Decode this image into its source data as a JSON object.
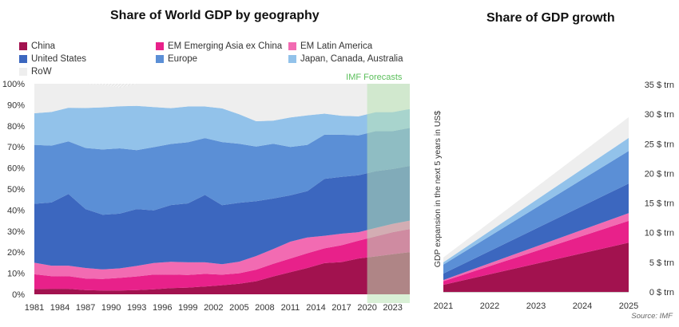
{
  "titles": {
    "left": "Share of World GDP by geography",
    "right": "Share of GDP growth"
  },
  "source": "Source: IMF",
  "colors": {
    "China": "#a2124f",
    "EM Emerging Asia ex China": "#e8218a",
    "EM Latin America": "#f26bb2",
    "United States": "#3c67bf",
    "Europe": "#5b8fd6",
    "Japan, Canada, Australia": "#92c2ea",
    "RoW": "#eeeeee",
    "forecast": "#b9e4b5"
  },
  "chart_data": [
    {
      "type": "area",
      "title": "Share of World GDP by geography",
      "stacked": true,
      "x": [
        1981,
        1983,
        1985,
        1987,
        1989,
        1991,
        1993,
        1995,
        1997,
        1999,
        2001,
        2003,
        2005,
        2007,
        2009,
        2011,
        2013,
        2015,
        2017,
        2019,
        2021,
        2023,
        2025
      ],
      "xticks": [
        "1981",
        "1984",
        "1987",
        "1990",
        "1993",
        "1996",
        "1999",
        "2002",
        "2005",
        "2008",
        "2011",
        "2014",
        "2017",
        "2020",
        "2023"
      ],
      "ylim": [
        0,
        100
      ],
      "yticks": [
        "0%",
        "10%",
        "20%",
        "30%",
        "40%",
        "50%",
        "60%",
        "70%",
        "80%",
        "90%",
        "100%"
      ],
      "forecast_label": "IMF Forecasts",
      "forecast_range": [
        2020,
        2025
      ],
      "legend_position": "top",
      "series": [
        {
          "name": "China",
          "values": [
            2.5,
            2.6,
            2.6,
            2,
            1.8,
            1.8,
            2,
            2.4,
            2.9,
            3.2,
            3.7,
            4.3,
            5,
            6.2,
            8.5,
            10.5,
            12.5,
            14.8,
            15.3,
            17,
            18,
            19,
            20
          ]
        },
        {
          "name": "EM Emerging Asia ex China",
          "values": [
            7,
            6,
            6,
            5.5,
            5.5,
            6,
            6.5,
            7,
            6.5,
            6,
            6,
            5,
            5,
            5.5,
            6,
            6.5,
            7,
            7,
            8,
            8.5,
            9.5,
            10.5,
            11
          ]
        },
        {
          "name": "EM Latin America",
          "values": [
            5.5,
            5,
            5,
            5,
            4.5,
            4.5,
            5,
            5.5,
            6,
            6,
            5.5,
            5,
            5.5,
            6.5,
            7,
            8,
            7.5,
            6,
            5.5,
            4,
            4,
            4,
            4
          ]
        },
        {
          "name": "United States",
          "values": [
            28,
            30,
            34,
            28,
            26,
            26,
            27,
            25,
            27,
            28,
            32,
            28,
            28,
            26,
            24,
            22,
            22,
            27,
            27,
            27,
            27,
            26,
            26
          ]
        },
        {
          "name": "Europe",
          "values": [
            28,
            27,
            25,
            29,
            31,
            31,
            28,
            30,
            29,
            29,
            27,
            30,
            28,
            26,
            26,
            23,
            22,
            21,
            20,
            19,
            19,
            18,
            18
          ]
        },
        {
          "name": "Japan, Canada, Australia",
          "values": [
            15,
            16,
            16,
            19,
            20,
            20,
            21,
            19,
            17,
            17,
            15,
            16,
            14,
            12,
            11,
            14,
            14,
            10,
            9,
            9,
            9,
            9,
            9
          ]
        },
        {
          "name": "RoW",
          "values": [
            14,
            13.4,
            11.4,
            11.5,
            10.7,
            8.7,
            10.5,
            11.1,
            11.6,
            10.8,
            10.8,
            11.7,
            14.5,
            17.8,
            17.5,
            16,
            15,
            14.2,
            15.2,
            15.5,
            13.5,
            13.5,
            12
          ]
        }
      ]
    },
    {
      "type": "area",
      "title": "Share of GDP growth",
      "stacked": true,
      "ylabel": "GDP expansion in the next 5 years in US$",
      "x": [
        2021,
        2025
      ],
      "xticks": [
        "2021",
        "2022",
        "2023",
        "2024",
        "2025"
      ],
      "ylim": [
        0,
        35
      ],
      "yticks": [
        "0 $ trn",
        "5 $ trn",
        "10 $ trn",
        "15 $ trn",
        "20 $ trn",
        "25 $ trn",
        "30 $ trn",
        "35 $ trn"
      ],
      "yaxis_side": "right",
      "series": [
        {
          "name": "China",
          "values": [
            1.2,
            8.3
          ]
        },
        {
          "name": "EM Emerging Asia ex China",
          "values": [
            0.6,
            3.7
          ]
        },
        {
          "name": "EM Latin America",
          "values": [
            0.2,
            1.3
          ]
        },
        {
          "name": "United States",
          "values": [
            1.1,
            5
          ]
        },
        {
          "name": "Europe",
          "values": [
            1.5,
            5.5
          ]
        },
        {
          "name": "Japan, Canada, Australia",
          "values": [
            0.4,
            2.2
          ]
        },
        {
          "name": "RoW",
          "values": [
            0.8,
            3.5
          ]
        }
      ]
    }
  ]
}
